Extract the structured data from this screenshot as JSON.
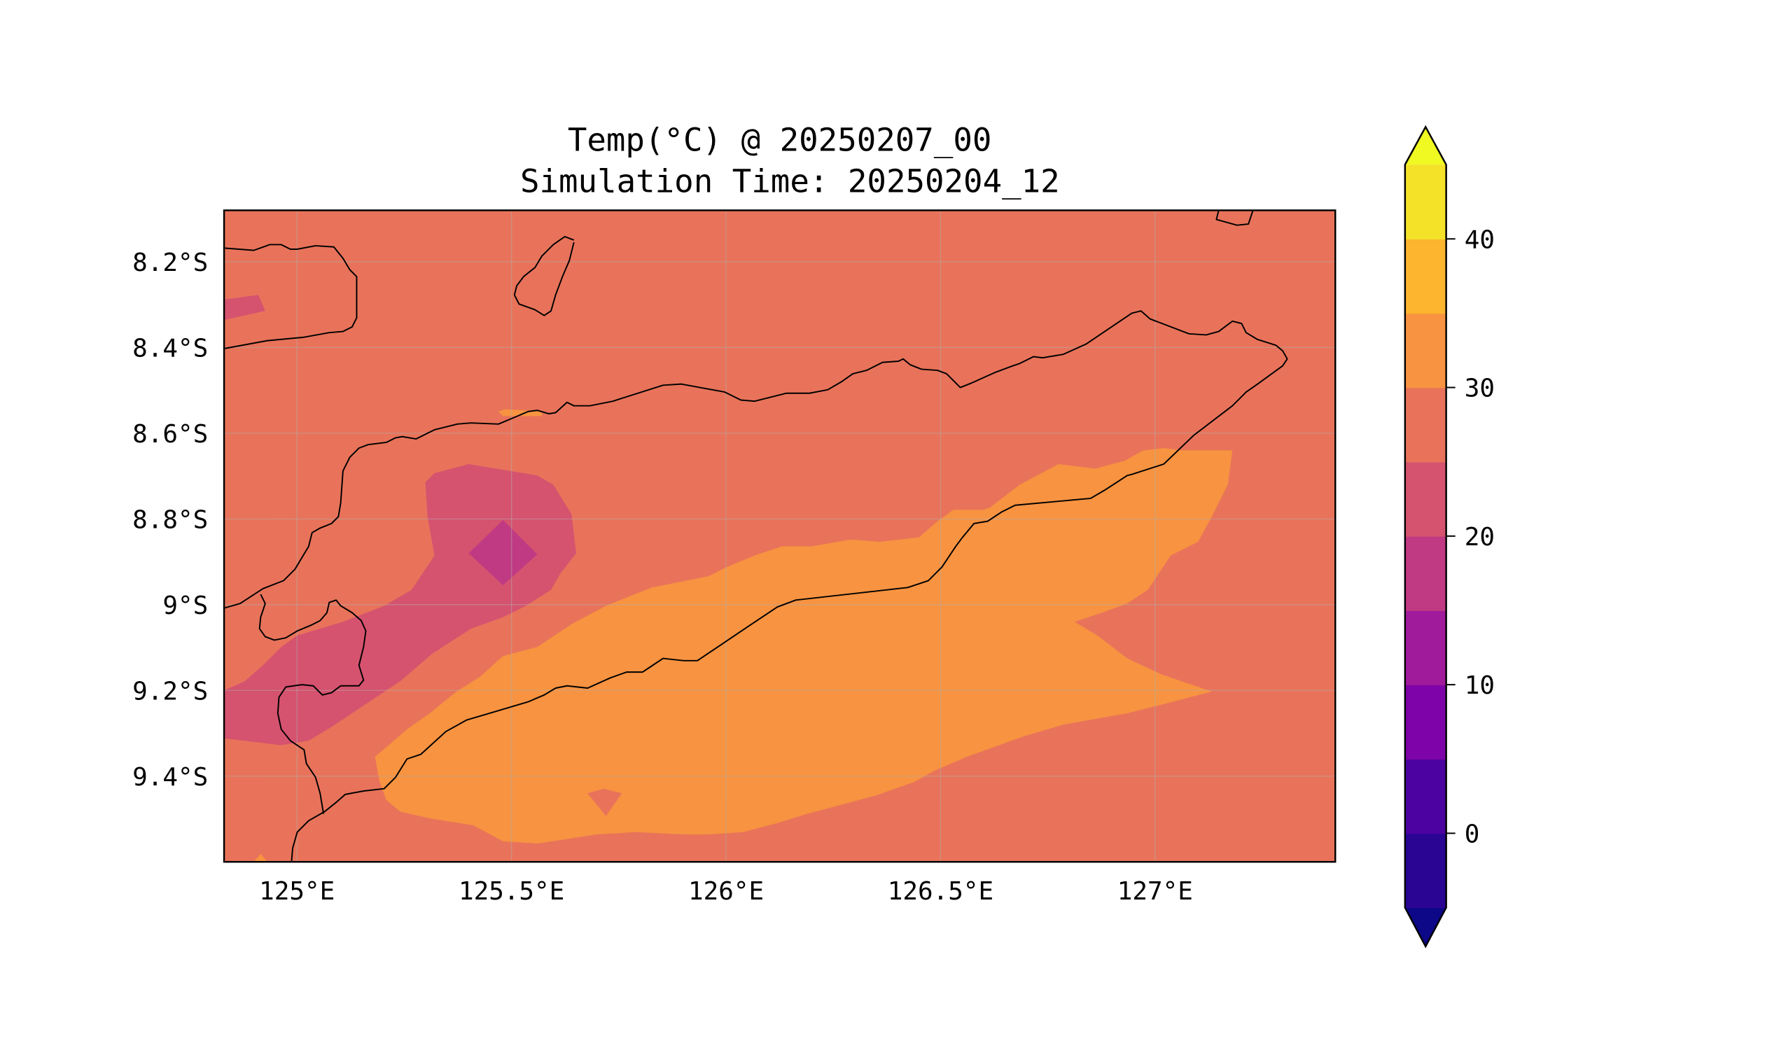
{
  "chart_data": {
    "type": "heatmap",
    "subtype": "filled-contour-map",
    "title": "Temp(°C) @ 20250207_00",
    "subtitle": "Simulation Time: 20250204_12",
    "xlabel": "",
    "ylabel": "",
    "xlim": [
      124.83,
      127.42
    ],
    "ylim": [
      -9.6,
      -8.08
    ],
    "x_ticks": [
      {
        "value": 125,
        "label": "125°E"
      },
      {
        "value": 125.5,
        "label": "125.5°E"
      },
      {
        "value": 126,
        "label": "126°E"
      },
      {
        "value": 126.5,
        "label": "126.5°E"
      },
      {
        "value": 127,
        "label": "127°E"
      }
    ],
    "y_ticks": [
      {
        "value": -8.2,
        "label": "8.2°S"
      },
      {
        "value": -8.4,
        "label": "8.4°S"
      },
      {
        "value": -8.6,
        "label": "8.6°S"
      },
      {
        "value": -8.8,
        "label": "8.8°S"
      },
      {
        "value": -9.0,
        "label": "9°S"
      },
      {
        "value": -9.2,
        "label": "9.2°S"
      },
      {
        "value": -9.4,
        "label": "9.4°S"
      }
    ],
    "grid": true,
    "field_summary": {
      "background_range_c": [
        25,
        30
      ],
      "warm_band_range_c": [
        30,
        35
      ],
      "cool_west_range_c": [
        20,
        25
      ],
      "min_patch_range_c": [
        15,
        20
      ]
    },
    "colorbar": {
      "colormap": "plasma",
      "levels": [
        -5,
        0,
        5,
        10,
        15,
        20,
        25,
        30,
        35,
        40,
        45
      ],
      "band_colors": [
        "#2a0593",
        "#4c02a1",
        "#7e03a8",
        "#a01a9c",
        "#c03a83",
        "#d5536f",
        "#e8735a",
        "#f79341",
        "#fdb42f",
        "#f4e229"
      ],
      "under_color": "#0d0887",
      "over_color": "#f0f921",
      "extend": "both",
      "placement": "right",
      "ticks": [
        {
          "value": 0,
          "label": "0"
        },
        {
          "value": 10,
          "label": "10"
        },
        {
          "value": 20,
          "label": "20"
        },
        {
          "value": 30,
          "label": "30"
        },
        {
          "value": 40,
          "label": "40"
        }
      ]
    }
  }
}
